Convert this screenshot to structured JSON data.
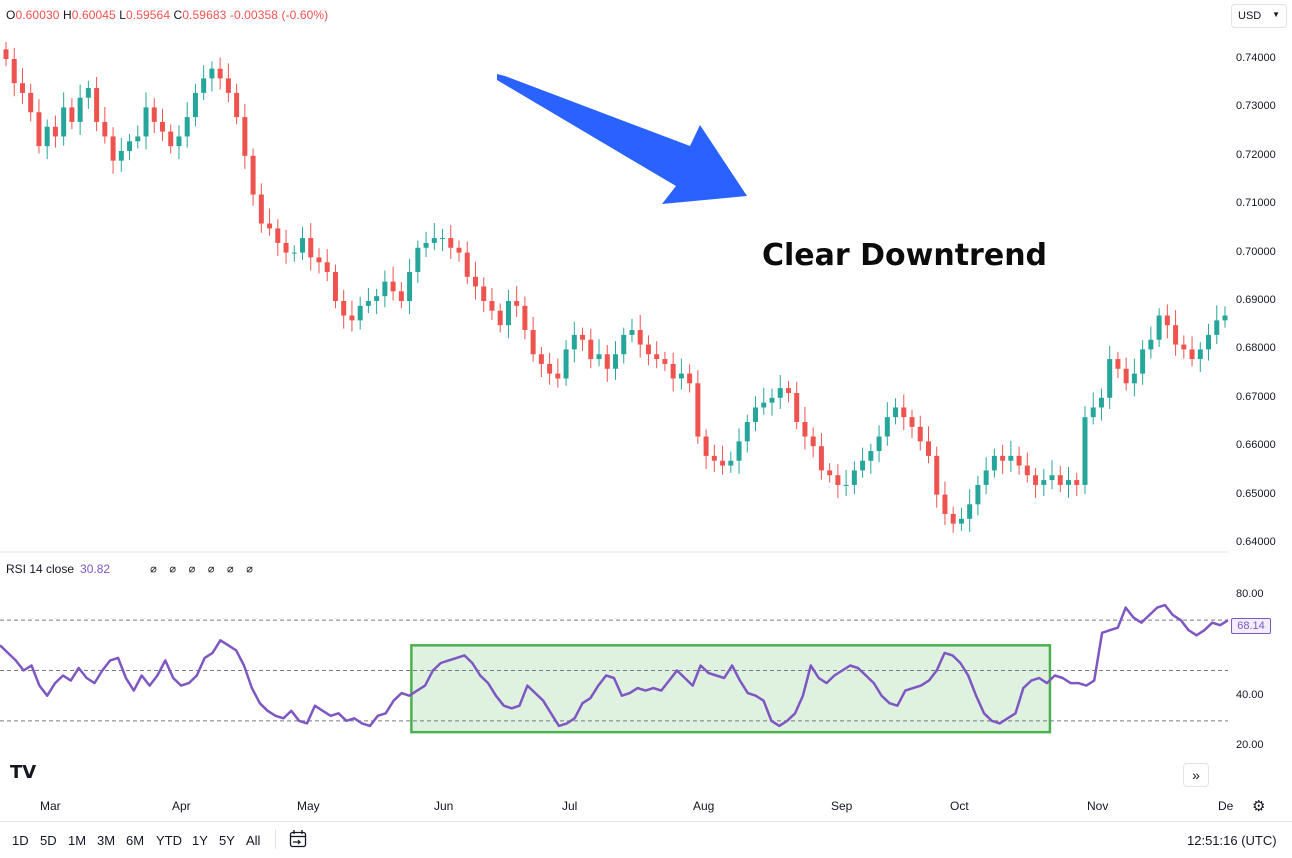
{
  "legend": {
    "open_label": "O",
    "open": "0.60030",
    "high_label": "H",
    "high": "0.60045",
    "low_label": "L",
    "low": "0.59564",
    "close_label": "C",
    "close": "0.59683",
    "change": "-0.00358 (-0.60%)"
  },
  "currency": {
    "label": "USD"
  },
  "annotation": {
    "text": "Clear Downtrend"
  },
  "rsi": {
    "label": "RSI 14 close",
    "value": "30.82",
    "symbols": "∅ ∅ ∅ ∅ ∅ ∅",
    "last_tag": "68.14"
  },
  "timeframes": [
    "1D",
    "5D",
    "1M",
    "3M",
    "6M",
    "YTD",
    "1Y",
    "5Y",
    "All"
  ],
  "clock": "12:51:16 (UTC)",
  "logo": "TV",
  "icons": {
    "scroll": "double-chevron-right-icon",
    "settings": "gear-icon",
    "calendar": "calendar-range-icon"
  },
  "colors": {
    "up": "#26a69a",
    "down": "#ef5350",
    "rsi_line": "#7e57c2",
    "range_box": "#4caf50",
    "arrow": "#2962ff"
  },
  "chart_data": [
    {
      "type": "candlestick",
      "title": "",
      "xlabel": "",
      "ylabel": "",
      "x_ticks": [
        "Mar",
        "Apr",
        "May",
        "Jun",
        "Jul",
        "Aug",
        "Sep",
        "Oct",
        "Nov",
        "De"
      ],
      "y_ticks": [
        "0.74000",
        "0.73000",
        "0.72000",
        "0.71000",
        "0.70000",
        "0.69000",
        "0.68000",
        "0.67000",
        "0.66000",
        "0.65000",
        "0.64000"
      ],
      "ylim": [
        0.637,
        0.744
      ],
      "close_path": [
        0.74,
        0.735,
        0.733,
        0.729,
        0.722,
        0.726,
        0.724,
        0.73,
        0.727,
        0.732,
        0.734,
        0.727,
        0.724,
        0.719,
        0.721,
        0.723,
        0.724,
        0.73,
        0.727,
        0.725,
        0.722,
        0.724,
        0.728,
        0.733,
        0.736,
        0.738,
        0.736,
        0.733,
        0.728,
        0.72,
        0.712,
        0.706,
        0.705,
        0.702,
        0.7,
        0.7,
        0.703,
        0.699,
        0.698,
        0.696,
        0.69,
        0.687,
        0.686,
        0.689,
        0.69,
        0.691,
        0.694,
        0.692,
        0.69,
        0.696,
        0.701,
        0.702,
        0.703,
        0.703,
        0.701,
        0.7,
        0.695,
        0.693,
        0.69,
        0.688,
        0.685,
        0.69,
        0.689,
        0.684,
        0.679,
        0.677,
        0.675,
        0.674,
        0.68,
        0.683,
        0.682,
        0.678,
        0.679,
        0.676,
        0.679,
        0.683,
        0.684,
        0.681,
        0.679,
        0.678,
        0.677,
        0.674,
        0.675,
        0.673,
        0.662,
        0.658,
        0.657,
        0.656,
        0.657,
        0.661,
        0.665,
        0.668,
        0.669,
        0.67,
        0.672,
        0.671,
        0.665,
        0.662,
        0.66,
        0.655,
        0.654,
        0.652,
        0.652,
        0.655,
        0.657,
        0.659,
        0.662,
        0.666,
        0.668,
        0.666,
        0.664,
        0.661,
        0.658,
        0.65,
        0.646,
        0.644,
        0.645,
        0.648,
        0.652,
        0.655,
        0.658,
        0.657,
        0.658,
        0.656,
        0.654,
        0.652,
        0.653,
        0.654,
        0.652,
        0.653,
        0.652,
        0.666,
        0.668,
        0.67,
        0.678,
        0.676,
        0.673,
        0.675,
        0.68,
        0.682,
        0.687,
        0.685,
        0.681,
        0.68,
        0.678,
        0.68,
        0.683,
        0.686,
        0.687
      ]
    },
    {
      "type": "line",
      "title": "",
      "xlabel": "",
      "ylabel": "",
      "series": [
        {
          "name": "RSI 14 close"
        }
      ],
      "y_ticks": [
        "80.00",
        "40.00",
        "20.00"
      ],
      "ylim": [
        18,
        83
      ],
      "reference_lines": [
        70,
        50,
        30
      ],
      "range_box": {
        "x_start": 0.335,
        "x_end": 0.855,
        "y_low": 25.5,
        "y_high": 60
      },
      "values": [
        60,
        57,
        54,
        50,
        52,
        44,
        40,
        45,
        48,
        46,
        51,
        47,
        45,
        50,
        54,
        55,
        47,
        42,
        48,
        44,
        48,
        54,
        47,
        44,
        45,
        48,
        55,
        57,
        62,
        60,
        58,
        52,
        43,
        37,
        34,
        32,
        31,
        34,
        30,
        29,
        36,
        34,
        32,
        33,
        30,
        31,
        29,
        28,
        32,
        33,
        38,
        41,
        40,
        42,
        44,
        50,
        53,
        54,
        55,
        56,
        53,
        48,
        45,
        40,
        36,
        35,
        36,
        44,
        41,
        38,
        33,
        28,
        29,
        31,
        37,
        39,
        44,
        48,
        47,
        40,
        41,
        43,
        42,
        43,
        42,
        46,
        50,
        47,
        44,
        52,
        49,
        48,
        47,
        52,
        46,
        41,
        40,
        38,
        30,
        28,
        30,
        33,
        40,
        52,
        47,
        45,
        48,
        50,
        52,
        51,
        48,
        45,
        40,
        37,
        36,
        42,
        43,
        44,
        46,
        50,
        57,
        56,
        53,
        48,
        40,
        33,
        30,
        29,
        31,
        33,
        43,
        46,
        47,
        45,
        48,
        47,
        45,
        45,
        44,
        46,
        65,
        66,
        67,
        75,
        71,
        69,
        72,
        75,
        76,
        72,
        70,
        66,
        64,
        66,
        69,
        68,
        70
      ]
    }
  ]
}
